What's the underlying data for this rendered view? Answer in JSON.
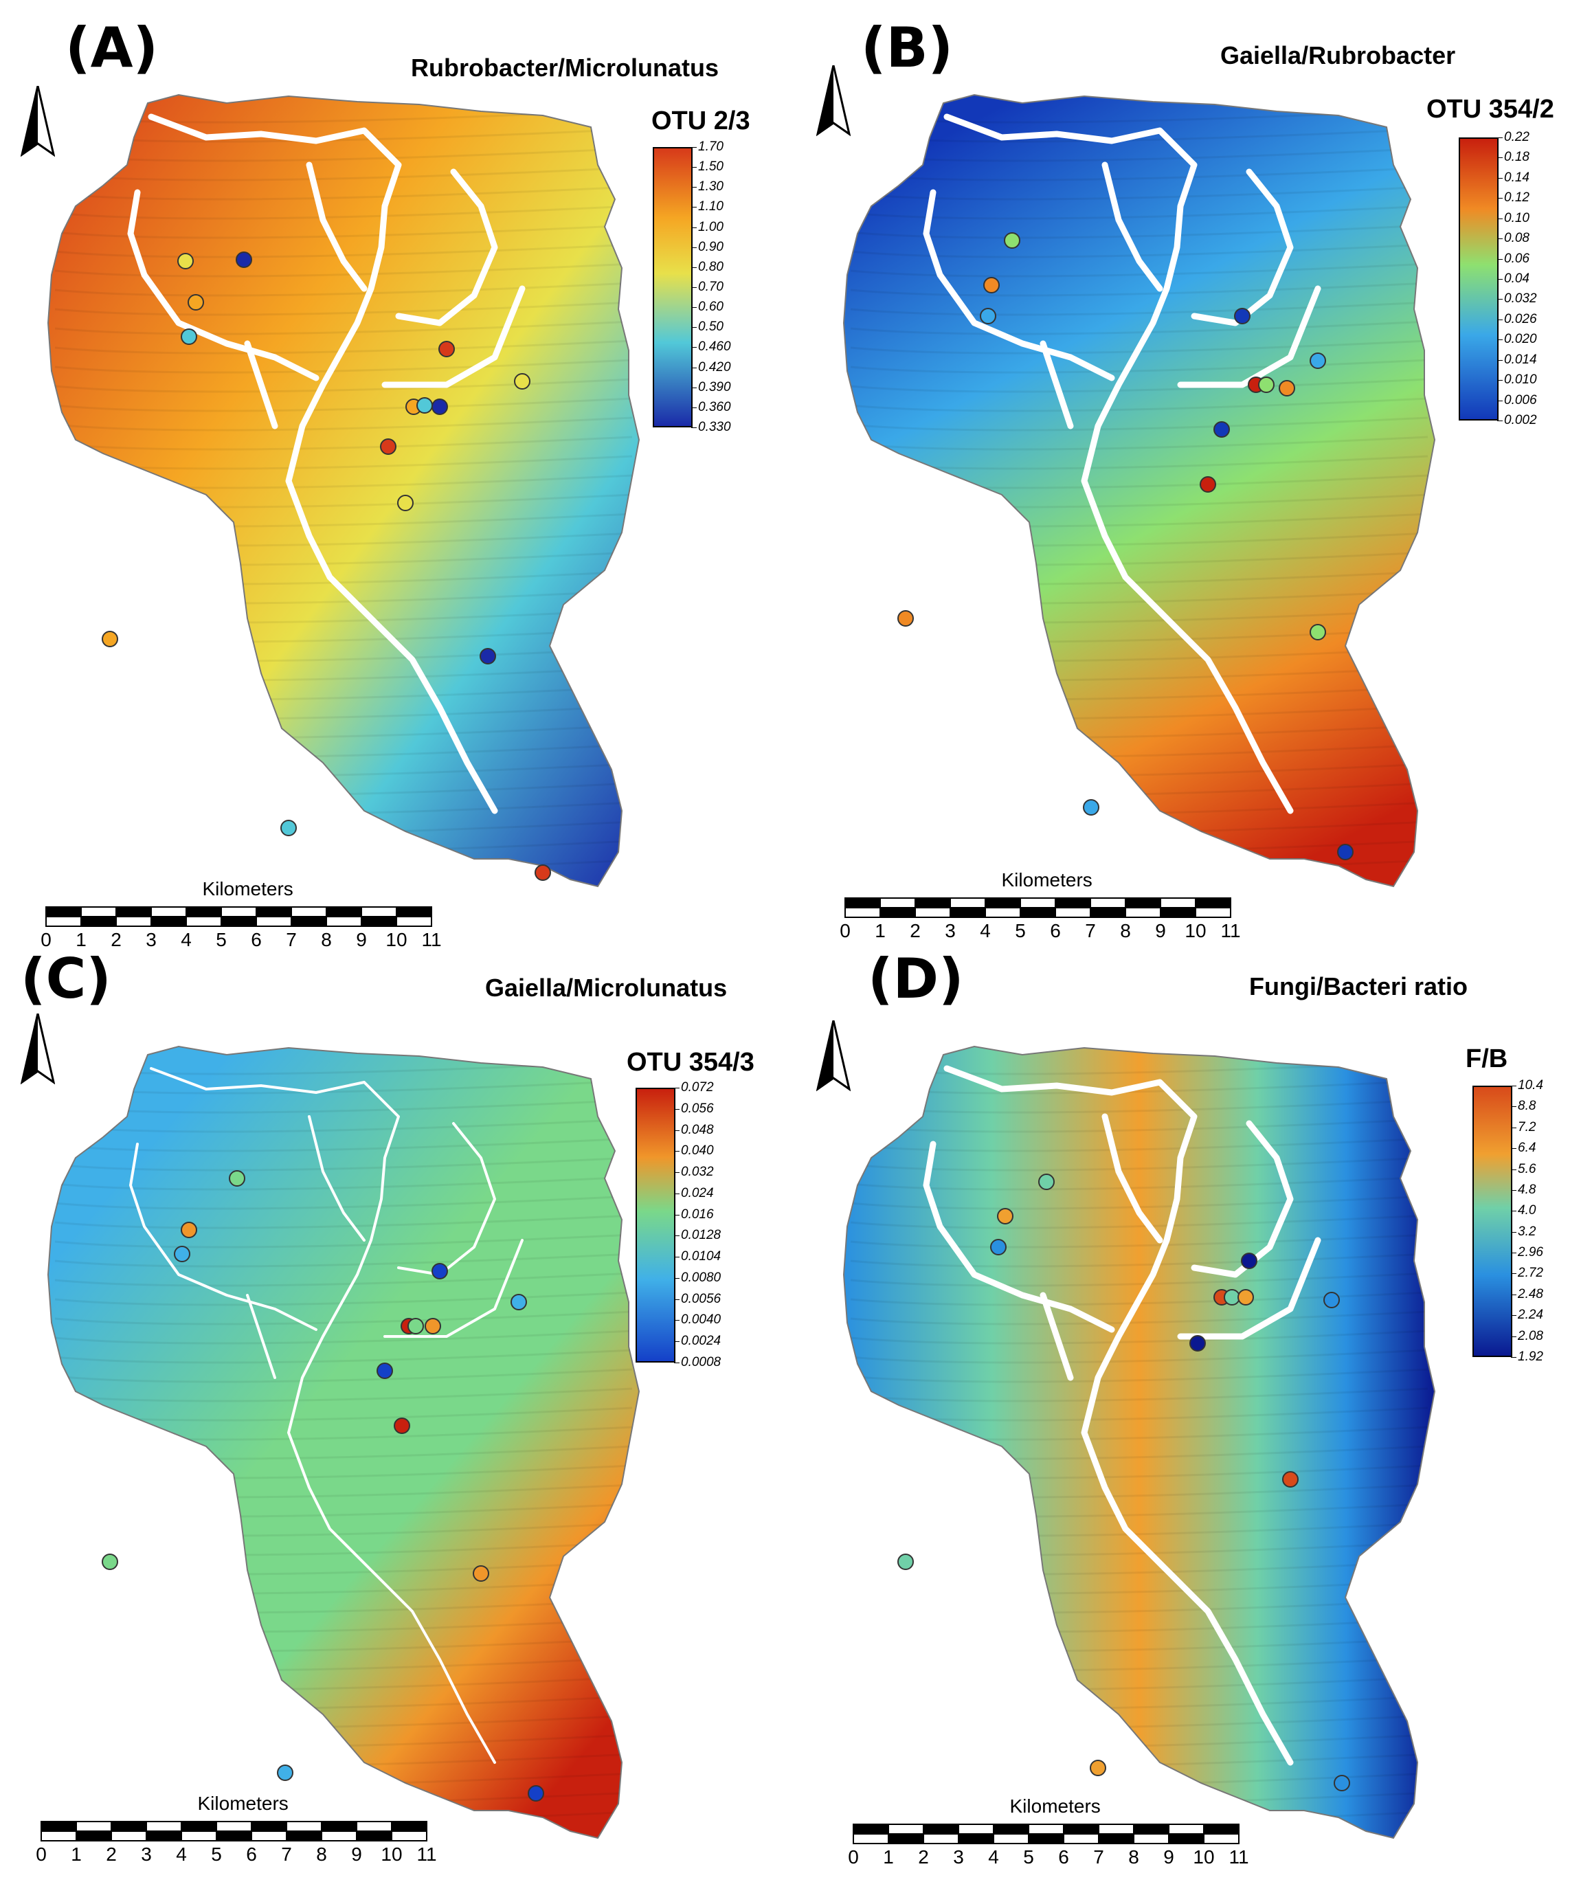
{
  "panels": [
    {
      "letter": "(A)",
      "title": "Rubrobacter/Microlunatus",
      "legend_title": "OTU 2/3",
      "legend_ticks": [
        "1.70",
        "1.50",
        "1.30",
        "1.10",
        "1.00",
        "0.90",
        "0.80",
        "0.70",
        "0.60",
        "0.50",
        "0.460",
        "0.420",
        "0.390",
        "0.360",
        "0.330"
      ],
      "colors": {
        "high": "#d73a1a",
        "mid_high": "#f5a623",
        "mid": "#e8e04a",
        "mid_low": "#52c8d8",
        "low": "#1a2aa8"
      }
    },
    {
      "letter": "(B)",
      "title": "Gaiella/Rubrobacter",
      "legend_title": "OTU 354/2",
      "legend_ticks": [
        "0.22",
        "0.18",
        "0.14",
        "0.12",
        "0.10",
        "0.08",
        "0.06",
        "0.04",
        "0.032",
        "0.026",
        "0.020",
        "0.014",
        "0.010",
        "0.006",
        "0.002"
      ],
      "colors": {
        "high": "#c8200e",
        "mid_high": "#f08a24",
        "mid": "#8ee070",
        "mid_low": "#3aa8e8",
        "low": "#1238b8"
      }
    },
    {
      "letter": "(C)",
      "title": "Gaiella/Microlunatus",
      "legend_title": "OTU 354/3",
      "legend_ticks": [
        "0.072",
        "0.056",
        "0.048",
        "0.040",
        "0.032",
        "0.024",
        "0.016",
        "0.0128",
        "0.0104",
        "0.0080",
        "0.0056",
        "0.0040",
        "0.0024",
        "0.0008"
      ],
      "colors": {
        "high": "#c8200e",
        "mid_high": "#f0962a",
        "mid": "#7ad88a",
        "mid_low": "#40b0e8",
        "low": "#1440c8"
      }
    },
    {
      "letter": "(D)",
      "title": "Fungi/Bacteri ratio",
      "legend_title": "F/B",
      "legend_ticks": [
        "10.4",
        "8.8",
        "7.2",
        "6.4",
        "5.6",
        "4.8",
        "4.0",
        "3.2",
        "2.96",
        "2.72",
        "2.48",
        "2.24",
        "2.08",
        "1.92"
      ],
      "colors": {
        "high": "#d84a1a",
        "mid_high": "#f0a030",
        "mid": "#70d0a8",
        "mid_low": "#2a90e0",
        "low": "#0a1890"
      }
    }
  ],
  "scale": {
    "title": "Kilometers",
    "labels": [
      "0",
      "1",
      "2",
      "3",
      "4",
      "5",
      "6",
      "7",
      "8",
      "9",
      "10",
      "11"
    ]
  }
}
